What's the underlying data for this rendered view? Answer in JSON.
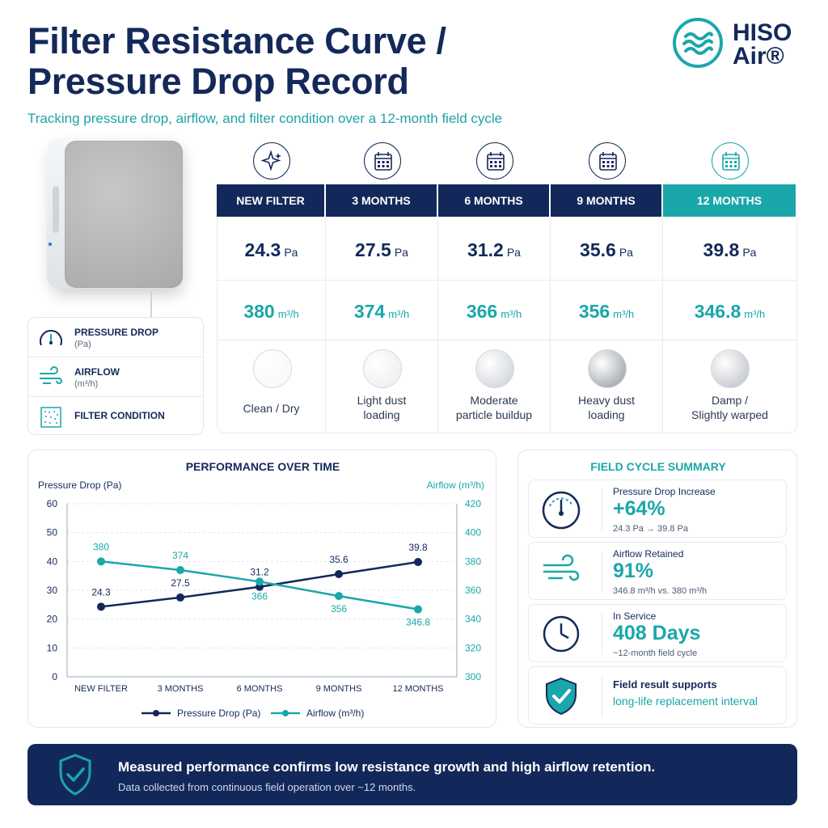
{
  "header": {
    "title_line1": "Filter Resistance Curve /",
    "title_line2": "Pressure Drop Record",
    "subtitle": "Tracking pressure drop, airflow, and filter condition over a 12-month field cycle"
  },
  "logo": {
    "line1": "HISO",
    "line2": "Air®"
  },
  "legend": [
    {
      "label": "PRESSURE DROP",
      "unit": "(Pa)",
      "icon": "gauge-icon"
    },
    {
      "label": "AIRFLOW",
      "unit": "(m³/h)",
      "icon": "airflow-icon"
    },
    {
      "label": "FILTER CONDITION",
      "unit": "",
      "icon": "filter-texture-icon"
    }
  ],
  "stages": [
    {
      "label": "NEW FILTER",
      "icon": "sparkle-icon",
      "pressure": "24.3",
      "pressure_unit": "Pa",
      "airflow": "380",
      "airflow_unit": "m³/h",
      "condition_line1": "Clean / Dry",
      "condition_line2": "",
      "disc_color": "#f6f7f8"
    },
    {
      "label": "3 MONTHS",
      "icon": "calendar-icon",
      "pressure": "27.5",
      "pressure_unit": "Pa",
      "airflow": "374",
      "airflow_unit": "m³/h",
      "condition_line1": "Light dust",
      "condition_line2": "loading",
      "disc_color": "#e9ebee"
    },
    {
      "label": "6 MONTHS",
      "icon": "calendar-icon",
      "pressure": "31.2",
      "pressure_unit": "Pa",
      "airflow": "366",
      "airflow_unit": "m³/h",
      "condition_line1": "Moderate",
      "condition_line2": "particle buildup",
      "disc_color": "#c9cdd2"
    },
    {
      "label": "9 MONTHS",
      "icon": "calendar-icon",
      "pressure": "35.6",
      "pressure_unit": "Pa",
      "airflow": "356",
      "airflow_unit": "m³/h",
      "condition_line1": "Heavy dust",
      "condition_line2": "loading",
      "disc_color": "#8f949a"
    },
    {
      "label": "12 MONTHS",
      "icon": "calendar-icon",
      "pressure": "39.8",
      "pressure_unit": "Pa",
      "airflow": "346.8",
      "airflow_unit": "m³/h",
      "condition_line1": "Damp /",
      "condition_line2": "Slightly warped",
      "disc_color": "#b7bbc0"
    }
  ],
  "chart_data": {
    "type": "line",
    "title": "PERFORMANCE OVER TIME",
    "categories": [
      "NEW FILTER",
      "3 MONTHS",
      "6 MONTHS",
      "9 MONTHS",
      "12 MONTHS"
    ],
    "ylabel": "Pressure Drop (Pa)",
    "y2label": "Airflow (m³/h)",
    "ylim": [
      0,
      60
    ],
    "yticks": [
      0,
      10,
      20,
      30,
      40,
      50,
      60
    ],
    "y2lim": [
      300,
      420
    ],
    "y2ticks": [
      300,
      320,
      340,
      360,
      380,
      400,
      420
    ],
    "grid": true,
    "legend_position": "bottom",
    "series": [
      {
        "name": "Pressure Drop (Pa)",
        "axis": "left",
        "color": "#13285a",
        "values": [
          24.3,
          27.5,
          31.2,
          35.6,
          39.8
        ],
        "labels": [
          "24.3",
          "27.5",
          "31.2",
          "35.6",
          "39.8"
        ]
      },
      {
        "name": "Airflow (m³/h)",
        "axis": "right",
        "color": "#1aa7aa",
        "values": [
          380,
          374,
          366,
          356,
          346.8
        ],
        "labels": [
          "380",
          "374",
          "366",
          "356",
          "346.8"
        ]
      }
    ]
  },
  "summary": {
    "title": "FIELD CYCLE SUMMARY",
    "items": [
      {
        "icon": "gauge-icon",
        "label": "Pressure Drop Increase",
        "value": "+64%",
        "detail": "24.3 Pa → 39.8 Pa"
      },
      {
        "icon": "airflow-icon",
        "label": "Airflow Retained",
        "value": "91%",
        "detail": "346.8 m³/h vs. 380 m³/h"
      },
      {
        "icon": "clock-icon",
        "label": "In Service",
        "value": "408 Days",
        "detail": "~12-month field cycle"
      }
    ],
    "note_line1": "Field result supports",
    "note_line2": "long-life replacement interval",
    "note_icon": "shield-check-icon"
  },
  "banner": {
    "main": "Measured performance confirms low resistance growth and high airflow retention.",
    "sub": "Data collected from continuous field operation over ~12 months.",
    "icon": "shield-check-icon"
  },
  "colors": {
    "navy": "#13285a",
    "teal": "#1aa7aa"
  }
}
